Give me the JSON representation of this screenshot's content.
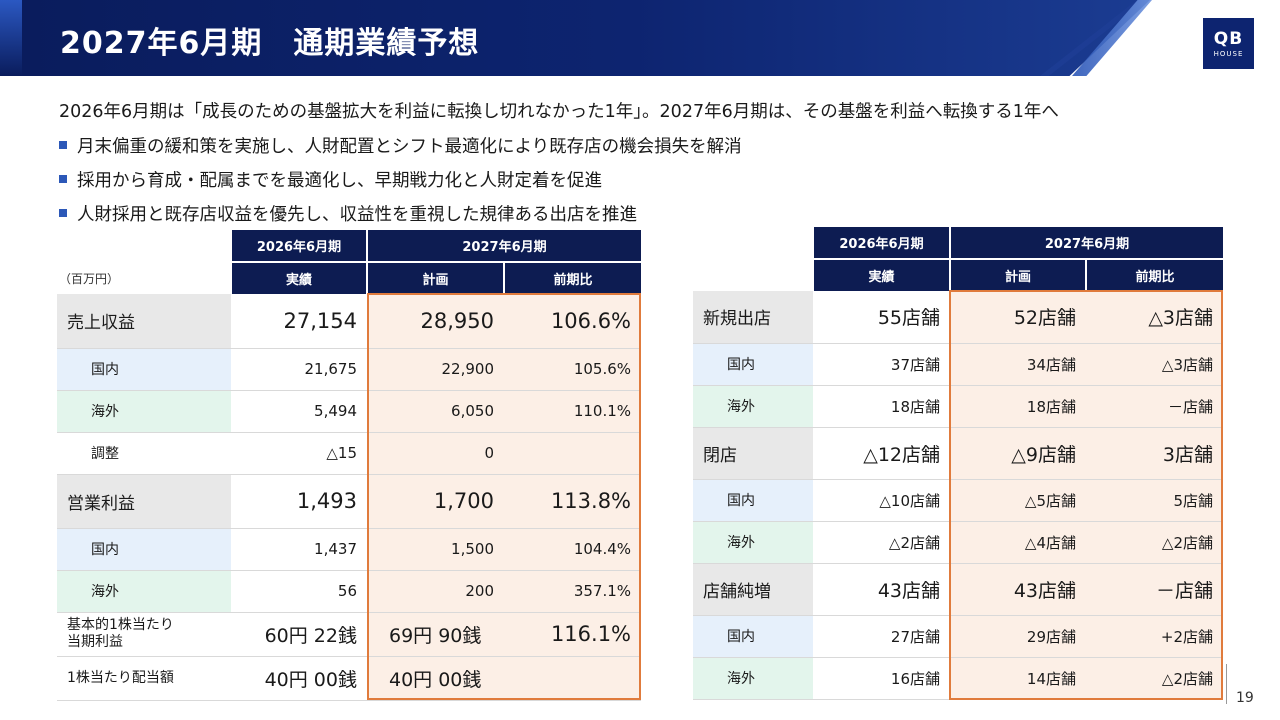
{
  "header": {
    "title": "2027年6月期　通期業績予想"
  },
  "logo": {
    "line1": "QB",
    "line2": "HOUSE"
  },
  "lead": "2026年6月期は「成長のための基盤拡大を利益に転換し切れなかった1年」。2027年6月期は、その基盤を利益へ転換する1年へ",
  "bullets": [
    "月末偏重の緩和策を実施し、人財配置とシフト最適化により既存店の機会損失を解消",
    "採用から育成・配属までを最適化し、早期戦力化と人財定着を促進",
    "人財採用と既存店収益を優先し、収益性を重視した規律ある出店を推進"
  ],
  "left_table": {
    "unit": "（百万円）",
    "period_prev": "2026年6月期",
    "period_next": "2027年6月期",
    "col_actual": "実績",
    "col_plan": "計画",
    "col_yoy": "前期比",
    "rows": [
      {
        "label": "売上収益",
        "actual": "27,154",
        "plan": "28,950",
        "yoy": "106.6%"
      },
      {
        "label": "国内",
        "actual": "21,675",
        "plan": "22,900",
        "yoy": "105.6%"
      },
      {
        "label": "海外",
        "actual": "5,494",
        "plan": "6,050",
        "yoy": "110.1%"
      },
      {
        "label": "調整",
        "actual": "△15",
        "plan": "0",
        "yoy": ""
      },
      {
        "label": "営業利益",
        "actual": "1,493",
        "plan": "1,700",
        "yoy": "113.8%"
      },
      {
        "label": "国内",
        "actual": "1,437",
        "plan": "1,500",
        "yoy": "104.4%"
      },
      {
        "label": "海外",
        "actual": "56",
        "plan": "200",
        "yoy": "357.1%"
      },
      {
        "label1": "基本的1株当たり",
        "label2": "当期利益",
        "actual": "60円 22銭",
        "plan": "69円 90銭",
        "yoy": "116.1%"
      },
      {
        "label": "1株当たり配当額",
        "actual": "40円 00銭",
        "plan": "40円 00銭",
        "yoy": ""
      }
    ]
  },
  "right_table": {
    "period_prev": "2026年6月期",
    "period_next": "2027年6月期",
    "col_actual": "実績",
    "col_plan": "計画",
    "col_yoy": "前期比",
    "rows": [
      {
        "label": "新規出店",
        "actual": "55店舗",
        "plan": "52店舗",
        "yoy": "△3店舗"
      },
      {
        "label": "国内",
        "actual": "37店舗",
        "plan": "34店舗",
        "yoy": "△3店舗"
      },
      {
        "label": "海外",
        "actual": "18店舗",
        "plan": "18店舗",
        "yoy": "－店舗"
      },
      {
        "label": "閉店",
        "actual": "△12店舗",
        "plan": "△9店舗",
        "yoy": "3店舗"
      },
      {
        "label": "国内",
        "actual": "△10店舗",
        "plan": "△5店舗",
        "yoy": "5店舗"
      },
      {
        "label": "海外",
        "actual": "△2店舗",
        "plan": "△4店舗",
        "yoy": "△2店舗"
      },
      {
        "label": "店舗純増",
        "actual": "43店舗",
        "plan": "43店舗",
        "yoy": "－店舗"
      },
      {
        "label": "国内",
        "actual": "27店舗",
        "plan": "29店舗",
        "yoy": "+2店舗"
      },
      {
        "label": "海外",
        "actual": "16店舗",
        "plan": "14店舗",
        "yoy": "△2店舗"
      }
    ]
  },
  "page_number": "19",
  "colors": {
    "banner": "#0d2470",
    "table_header": "#0d1c52",
    "highlight_border": "#e07b3c",
    "plan_fill": "#fcefe6",
    "domestic_fill": "#e6f0fb",
    "overseas_fill": "#e3f5ec"
  }
}
